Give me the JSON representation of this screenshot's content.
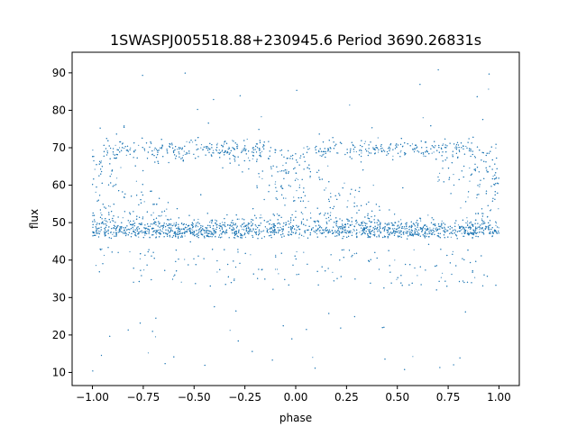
{
  "chart_data": {
    "type": "scatter",
    "title": "1SWASPJ005518.88+230945.6 Period 3690.26831s",
    "xlabel": "phase",
    "ylabel": "flux",
    "xlim": [
      -1.1,
      1.1
    ],
    "ylim": [
      6.5,
      95.5
    ],
    "xticks": [
      -1.0,
      -0.75,
      -0.5,
      -0.25,
      0.0,
      0.25,
      0.5,
      0.75,
      1.0
    ],
    "xtick_labels": [
      "−1.00",
      "−0.75",
      "−0.50",
      "−0.25",
      "0.00",
      "0.25",
      "0.50",
      "0.75",
      "1.00"
    ],
    "yticks": [
      10,
      20,
      30,
      40,
      50,
      60,
      70,
      80,
      90
    ],
    "ytick_labels": [
      "10",
      "20",
      "30",
      "40",
      "50",
      "60",
      "70",
      "80",
      "90"
    ],
    "grid": false,
    "series": [
      {
        "color": "#1f77b4",
        "marker": "point",
        "description_points": {
          "x": [
            -1.0,
            -0.95,
            -0.9,
            -0.85,
            -0.8,
            -0.75,
            -0.7,
            -0.65,
            -0.6,
            -0.55,
            -0.5,
            -0.45,
            -0.4,
            -0.35,
            -0.3,
            -0.25,
            -0.2,
            -0.15,
            -0.1,
            -0.05,
            0.0,
            0.05,
            0.1,
            0.15,
            0.2,
            0.25,
            0.3,
            0.35,
            0.4,
            0.45,
            0.5,
            0.55,
            0.6,
            0.65,
            0.7,
            0.75,
            0.8,
            0.85,
            0.9,
            0.95,
            1.0
          ],
          "y": [
            68,
            66,
            64,
            61,
            58,
            55,
            70,
            71,
            71,
            70,
            70,
            70,
            70,
            70,
            70,
            69,
            66,
            62,
            58,
            54,
            48,
            47,
            66,
            64,
            61,
            58,
            71,
            71,
            71,
            70,
            70,
            70,
            70,
            70,
            70,
            69,
            66,
            62,
            58,
            54,
            48
          ]
        }
      }
    ]
  }
}
